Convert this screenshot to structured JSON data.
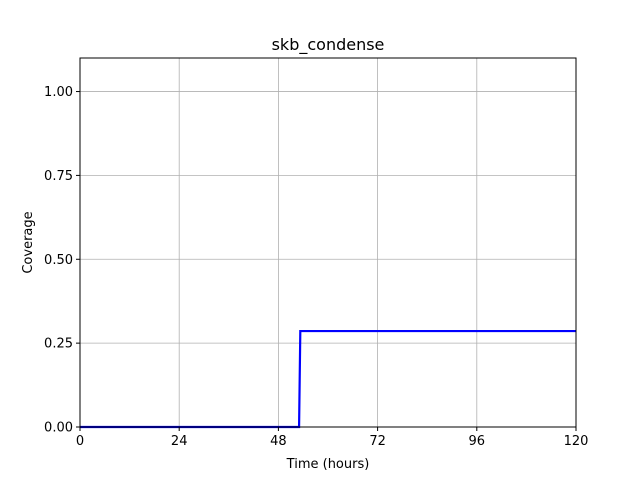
{
  "chart_data": {
    "type": "line",
    "title": "skb_condense",
    "xlabel": "Time (hours)",
    "ylabel": "Coverage",
    "xlim": [
      0,
      120
    ],
    "ylim": [
      0,
      1.1
    ],
    "x_ticks": [
      0,
      24,
      48,
      72,
      96,
      120
    ],
    "x_tick_labels": [
      "0",
      "24",
      "48",
      "72",
      "96",
      "120"
    ],
    "y_ticks": [
      0,
      0.25,
      0.5,
      0.75,
      1.0
    ],
    "y_tick_labels": [
      "0.00",
      "0.25",
      "0.50",
      "0.75",
      "1.00"
    ],
    "grid": true,
    "series": [
      {
        "color": "#0000ff",
        "x": [
          0,
          53,
          53.3,
          120
        ],
        "y": [
          0,
          0,
          0.286,
          0.286
        ]
      }
    ]
  }
}
